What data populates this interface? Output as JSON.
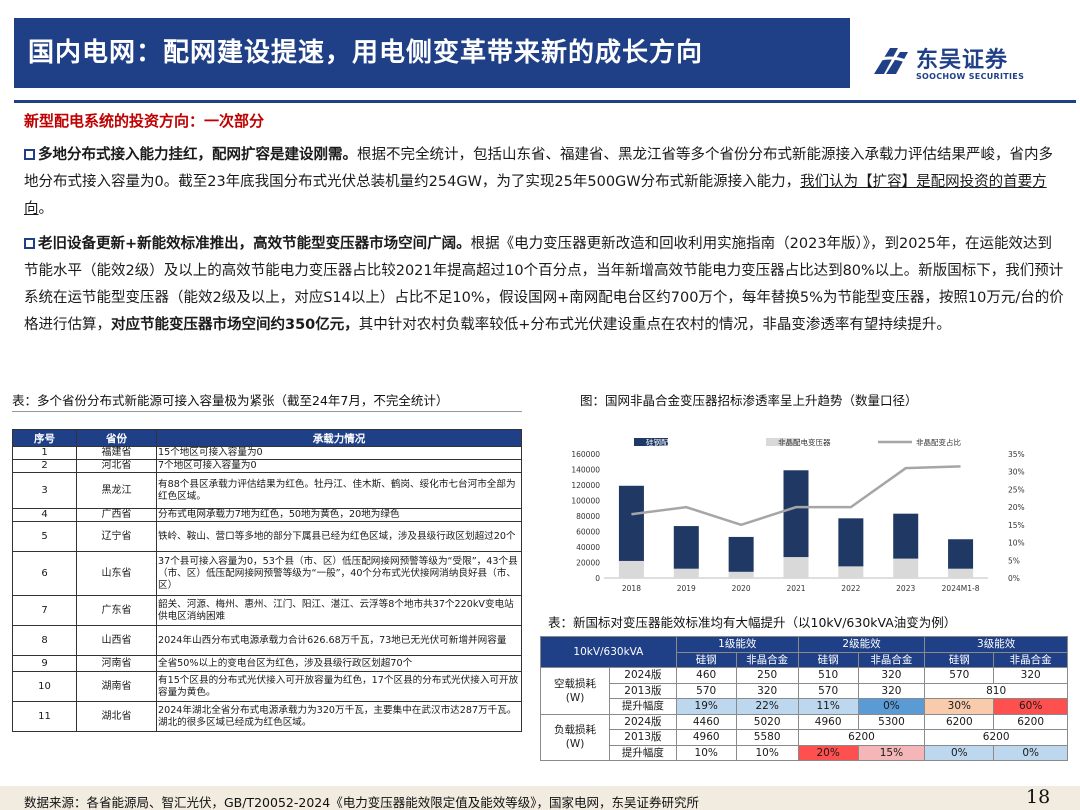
{
  "header": {
    "title": "国内电网：配网建设提速，用电侧变革带来新的成长方向",
    "logo_cn": "东吴证券",
    "logo_en": "SOOCHOW SECURITIES"
  },
  "section_head": "新型配电系统的投资方向：一次部分",
  "para1": {
    "bold": "多地分布式接入能力挂红，配网扩容是建设刚需。",
    "text": "根据不完全统计，包括山东省、福建省、黑龙江省等多个省份分布式新能源接入承载力评估结果严峻，省内多地分布式接入容量为0。截至23年底我国分布式光伏总装机量约254GW，为了实现25年500GW分布式新能源接入能力，",
    "underline": "我们认为【扩容】是配网投资的首要方向",
    "end": "。"
  },
  "para2": {
    "bold": "老旧设备更新+新能效标准推出，高效节能型变压器市场空间广阔。",
    "text": "根据《电力变压器更新改造和回收利用实施指南（2023年版）》，到2025年，在运能效达到节能水平（能效2级）及以上的高效节能电力变压器占比较2021年提高超过10个百分点，当年新增高效节能电力变压器占比达到80%以上。新版国标下，我们预计系统在运节能型变压器（能效2级及以上，对应S14以上）占比不足10%，假设国网+南网配电台区约700万个，每年替换5%为节能型变压器，按照10万元/台的价格进行估算，",
    "bold2": "对应节能变压器市场空间约350亿元，",
    "text2": "其中针对农村负载率较低+分布式光伏建设重点在农村的情况，非晶变渗透率有望持续提升。"
  },
  "captions": {
    "left": "表：多个省份分布式新能源可接入容量极为紧张（截至24年7月，不完全统计）",
    "right_chart": "图：国网非晶合金变压器招标渗透率呈上升趋势（数量口径）",
    "right_table": "表：新国标对变压器能效标准均有大幅提升（以10kV/630kVA油变为例）"
  },
  "province_table": {
    "headers": [
      "序号",
      "省份",
      "承载力情况"
    ],
    "rows": [
      {
        "no": "1",
        "province": "福建省",
        "status": "15个地区可接入容量为0"
      },
      {
        "no": "2",
        "province": "河北省",
        "status": "7个地区可接入容量为0"
      },
      {
        "no": "3",
        "province": "黑龙江",
        "status": "有88个县区承载力评估结果为红色。牡丹江、佳木斯、鹤岗、绥化市七台河市全部为红色区域。"
      },
      {
        "no": "4",
        "province": "广西省",
        "status": "分布式电网承载力7地为红色，50地为黄色，20地为绿色"
      },
      {
        "no": "5",
        "province": "辽宁省",
        "status": "铁岭、鞍山、营口等多地的部分下属县已经为红色区域，涉及县级行政区划超过20个"
      },
      {
        "no": "6",
        "province": "山东省",
        "status": "37个县可接入容量为0，53个县（市、区）低压配网接网预警等级为“受限”，43个县（市、区）低压配网接网预警等级为“一般”，40个分布式光伏接网消纳良好县（市、区）"
      },
      {
        "no": "7",
        "province": "广东省",
        "status": "韶关、河源、梅州、惠州、江门、阳江、湛江、云浮等8个地市共37个220kV变电站供电区消纳困难"
      },
      {
        "no": "8",
        "province": "山西省",
        "status": "2024年山西分布式电源承载力合计626.68万千瓦，73地已无光伏可新增并网容量"
      },
      {
        "no": "9",
        "province": "河南省",
        "status": "全省50%以上的变电台区为红色，涉及县级行政区划超70个"
      },
      {
        "no": "10",
        "province": "湖南省",
        "status": "有15个区县的分布式光伏接入可开放容量为红色，17个区县的分布式光伏接入可开放容量为黄色。"
      },
      {
        "no": "11",
        "province": "湖北省",
        "status": "2024年湖北全省分布式电源承载力为320万千瓦，主要集中在武汉市达287万千瓦。湖北的很多区域已经成为红色区域。"
      }
    ]
  },
  "chart_data": {
    "type": "bar",
    "categories": [
      "2018",
      "2019",
      "2020",
      "2021",
      "2022",
      "2023",
      "2024M1-8"
    ],
    "series": [
      {
        "name": "硅钢配电变压器",
        "type": "bar",
        "stack": "total",
        "color": "#1f3864",
        "values": [
          97000,
          55000,
          45000,
          112000,
          62000,
          58000,
          38000
        ]
      },
      {
        "name": "非晶配电变压器",
        "type": "bar",
        "stack": "total",
        "color": "#d9d9d9",
        "values": [
          22000,
          12000,
          8000,
          27000,
          15000,
          25000,
          12000
        ]
      },
      {
        "name": "非晶配变占比",
        "type": "line",
        "axis": "right",
        "color": "#a6a6a6",
        "values": [
          0.18,
          0.2,
          0.15,
          0.2,
          0.2,
          0.31,
          0.315
        ]
      }
    ],
    "y_left": {
      "min": 0,
      "max": 160000,
      "ticks": [
        "0",
        "20000",
        "40000",
        "60000",
        "80000",
        "100000",
        "120000",
        "140000",
        "160000"
      ]
    },
    "y_right": {
      "min": 0,
      "max": 0.35,
      "ticks": [
        "0%",
        "5%",
        "10%",
        "15%",
        "20%",
        "25%",
        "30%",
        "35%"
      ]
    },
    "legend": "top",
    "grid": false
  },
  "efficiency_table": {
    "corner": "10kV/630kVA",
    "levels": [
      "1级能效",
      "2级能效",
      "3级能效"
    ],
    "materials": [
      "硅钢",
      "非晶合金",
      "硅钢",
      "非晶合金",
      "硅钢",
      "非晶合金"
    ],
    "groups": [
      {
        "name": "空载损耗\n(W)",
        "rows": [
          {
            "label": "2024版",
            "cells": [
              "460",
              "250",
              "510",
              "320",
              "570",
              "320"
            ]
          },
          {
            "label": "2013版",
            "cells": [
              "570",
              "320",
              "570",
              "320",
              "810"
            ]
          },
          {
            "label": "提升幅度",
            "cells": [
              "19%",
              "22%",
              "11%",
              "0%",
              "30%",
              "60%"
            ]
          }
        ]
      },
      {
        "name": "负载损耗\n(W)",
        "rows": [
          {
            "label": "2024版",
            "cells": [
              "4460",
              "5020",
              "4960",
              "5300",
              "6200",
              "6200"
            ]
          },
          {
            "label": "2013版",
            "cells": [
              "4960",
              "5580",
              "6200",
              "6200"
            ]
          },
          {
            "label": "提升幅度",
            "cells": [
              "10%",
              "10%",
              "20%",
              "15%",
              "0%",
              "0%"
            ]
          }
        ]
      }
    ]
  },
  "footer": {
    "source": "数据来源：各省能源局、智汇光伏，GB/T20052-2024《电力变压器能效限定值及能效等级》，国家电网，东吴证券研究所",
    "page": "18"
  }
}
